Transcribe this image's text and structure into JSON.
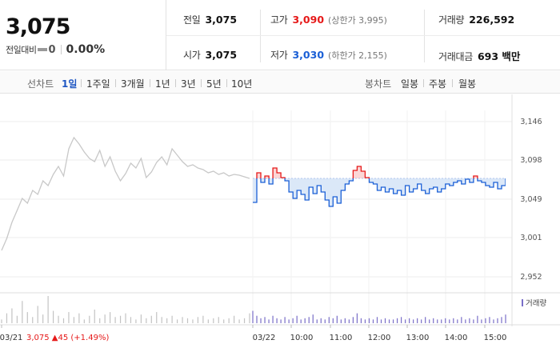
{
  "summary": {
    "price": "3,075",
    "change_label": "전일대비",
    "change_value": "0",
    "change_pct": "0.00%",
    "prev_close_label": "전일",
    "prev_close": "3,075",
    "open_label": "시가",
    "open": "3,075",
    "high_label": "고가",
    "high": "3,090",
    "upper_limit": "(상한가 3,995)",
    "low_label": "저가",
    "low": "3,030",
    "lower_limit": "(하한가 2,155)",
    "volume_label": "거래량",
    "volume": "226,592",
    "amount_label": "거래대금",
    "amount": "693 백만"
  },
  "period_bar": {
    "line_label": "선차트",
    "line_periods": [
      "1일",
      "1주일",
      "3개월",
      "1년",
      "3년",
      "5년",
      "10년"
    ],
    "active_period": "1일",
    "candle_label": "봉차트",
    "candle_periods": [
      "일봉",
      "주봉",
      "월봉"
    ]
  },
  "colors": {
    "up": "#e61919",
    "down": "#1a5fd6",
    "history_line": "#c8c8c8",
    "band_fill": "#dbe8f8",
    "up_fill": "#fbd6d6",
    "volume_bar": "#c3c3c3",
    "volume_today": "#7a6fc8"
  },
  "chart_data": {
    "type": "line",
    "title": "",
    "reference_price": 3075,
    "ylim": [
      2940,
      3150
    ],
    "y_ticks": [
      "3,146",
      "3,098",
      "3,049",
      "3,001",
      "2,952"
    ],
    "y_tick_values": [
      3146,
      3098,
      3049,
      3001,
      2952
    ],
    "x_ticks": [
      "03/21",
      "03/22",
      "10:00",
      "11:00",
      "12:00",
      "13:00",
      "14:00",
      "15:00"
    ],
    "grid": true,
    "previous_day": {
      "date": "03/21",
      "summary": "3,075 ▲45 (+1.49%)",
      "values": [
        2985,
        3000,
        3020,
        3035,
        3050,
        3044,
        3060,
        3055,
        3072,
        3066,
        3080,
        3090,
        3078,
        3112,
        3126,
        3118,
        3108,
        3100,
        3096,
        3110,
        3090,
        3102,
        3084,
        3072,
        3081,
        3094,
        3088,
        3100,
        3076,
        3083,
        3095,
        3102,
        3092,
        3112,
        3104,
        3096,
        3090,
        3092,
        3088,
        3086,
        3082,
        3084,
        3080,
        3082,
        3078,
        3080,
        3079,
        3077,
        3075
      ]
    },
    "today": {
      "date": "03/22",
      "values": [
        3045,
        3082,
        3070,
        3078,
        3068,
        3088,
        3082,
        3076,
        3072,
        3058,
        3050,
        3060,
        3055,
        3048,
        3064,
        3056,
        3066,
        3058,
        3048,
        3040,
        3052,
        3044,
        3060,
        3068,
        3072,
        3085,
        3090,
        3084,
        3076,
        3070,
        3068,
        3060,
        3064,
        3058,
        3062,
        3056,
        3060,
        3054,
        3066,
        3058,
        3062,
        3068,
        3060,
        3056,
        3062,
        3064,
        3058,
        3062,
        3068,
        3066,
        3070,
        3072,
        3068,
        3074,
        3070,
        3078,
        3072,
        3070,
        3066,
        3064,
        3070,
        3062,
        3066,
        3075
      ]
    },
    "volume_legend": "거래량",
    "volume": {
      "previous_day": [
        3,
        8,
        12,
        6,
        18,
        9,
        5,
        14,
        7,
        22,
        10,
        6,
        4,
        9,
        5,
        8,
        3,
        6,
        11,
        4,
        7,
        9,
        5,
        6,
        8,
        5,
        3,
        7,
        4,
        6,
        9,
        5,
        4,
        6,
        3,
        5,
        4,
        3,
        5,
        6,
        3,
        4,
        5,
        3,
        4,
        6,
        3,
        4,
        8
      ],
      "today": [
        10,
        6,
        4,
        5,
        3,
        6,
        4,
        3,
        5,
        3,
        4,
        6,
        3,
        4,
        5,
        7,
        3,
        4,
        3,
        5,
        4,
        6,
        3,
        4,
        3,
        5,
        8,
        4,
        3,
        4,
        3,
        5,
        3,
        4,
        3,
        3,
        4,
        5,
        3,
        4,
        3,
        4,
        3,
        5,
        3,
        4,
        3,
        3,
        4,
        3,
        4,
        3,
        5,
        3,
        4,
        3,
        6,
        3,
        4,
        5,
        3,
        4,
        5,
        7
      ]
    }
  }
}
